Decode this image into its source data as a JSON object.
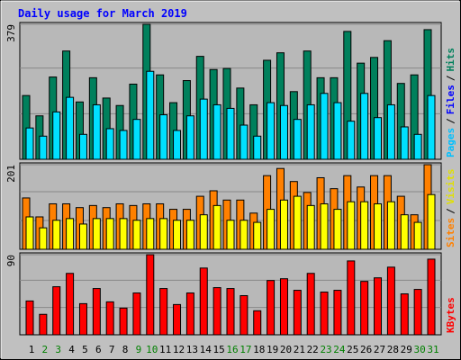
{
  "chart_data": [
    {
      "type": "bar",
      "title": "Daily usage for March 2019",
      "categories": [
        "1",
        "2",
        "3",
        "4",
        "5",
        "6",
        "7",
        "8",
        "9",
        "10",
        "11",
        "12",
        "13",
        "14",
        "15",
        "16",
        "17",
        "18",
        "19",
        "20",
        "21",
        "22",
        "23",
        "24",
        "25",
        "26",
        "27",
        "28",
        "29",
        "30",
        "31"
      ],
      "category_colors": [
        "#000000",
        "#008000",
        "#008000",
        "#000000",
        "#000000",
        "#000000",
        "#000000",
        "#000000",
        "#008000",
        "#008000",
        "#000000",
        "#000000",
        "#000000",
        "#000000",
        "#000000",
        "#008000",
        "#008000",
        "#000000",
        "#000000",
        "#000000",
        "#000000",
        "#000000",
        "#008000",
        "#008000",
        "#000000",
        "#000000",
        "#000000",
        "#000000",
        "#000000",
        "#008000",
        "#008000"
      ],
      "ylim": [
        0,
        379
      ],
      "yticks": [
        379
      ],
      "legend": [
        {
          "name": "Pages",
          "color": "#00c0ff"
        },
        {
          "name": "Files",
          "color": "#0000ff"
        },
        {
          "name": "Hits",
          "color": "#00805c"
        }
      ],
      "legend_separator": "/",
      "series": [
        {
          "color": "#00805c",
          "values": [
            179,
            122,
            231,
            304,
            161,
            229,
            172,
            151,
            211,
            379,
            237,
            159,
            221,
            289,
            252,
            255,
            200,
            153,
            278,
            299,
            190,
            304,
            229,
            229,
            359,
            270,
            286,
            333,
            213,
            237,
            364
          ]
        },
        {
          "color": "#00e0ff",
          "values": [
            88,
            65,
            133,
            174,
            70,
            153,
            86,
            81,
            112,
            247,
            125,
            81,
            122,
            169,
            153,
            143,
            96,
            65,
            159,
            151,
            112,
            153,
            185,
            159,
            107,
            185,
            117,
            153,
            91,
            70,
            179
          ]
        }
      ]
    },
    {
      "type": "bar",
      "ylim": [
        0,
        201
      ],
      "yticks": [
        201
      ],
      "legend": [
        {
          "name": "Sites",
          "color": "#ff8000"
        },
        {
          "name": "Visits",
          "color": "#e0e000"
        }
      ],
      "legend_separator": "/",
      "series": [
        {
          "color": "#ff8000",
          "values": [
            122,
            77,
            108,
            108,
            99,
            104,
            99,
            108,
            104,
            108,
            108,
            95,
            95,
            126,
            139,
            117,
            117,
            86,
            175,
            192,
            161,
            135,
            170,
            144,
            175,
            148,
            175,
            175,
            126,
            82,
            201
          ]
        },
        {
          "color": "#ffff00",
          "values": [
            77,
            51,
            69,
            73,
            60,
            73,
            73,
            73,
            69,
            73,
            73,
            69,
            69,
            82,
            104,
            69,
            69,
            64,
            95,
            117,
            126,
            104,
            108,
            95,
            113,
            113,
            108,
            113,
            82,
            64,
            130
          ]
        }
      ]
    },
    {
      "type": "bar",
      "ylim": [
        0,
        90
      ],
      "yticks": [
        90
      ],
      "legend": [
        {
          "name": "KBytes",
          "color": "#ff0000"
        }
      ],
      "legend_separator": "/",
      "series": [
        {
          "color": "#ff0000",
          "values": [
            38,
            23,
            54,
            69,
            35,
            52,
            37,
            30,
            47,
            90,
            52,
            34,
            47,
            75,
            53,
            52,
            44,
            27,
            61,
            63,
            50,
            69,
            48,
            50,
            83,
            60,
            64,
            76,
            46,
            51,
            85
          ]
        }
      ]
    }
  ]
}
